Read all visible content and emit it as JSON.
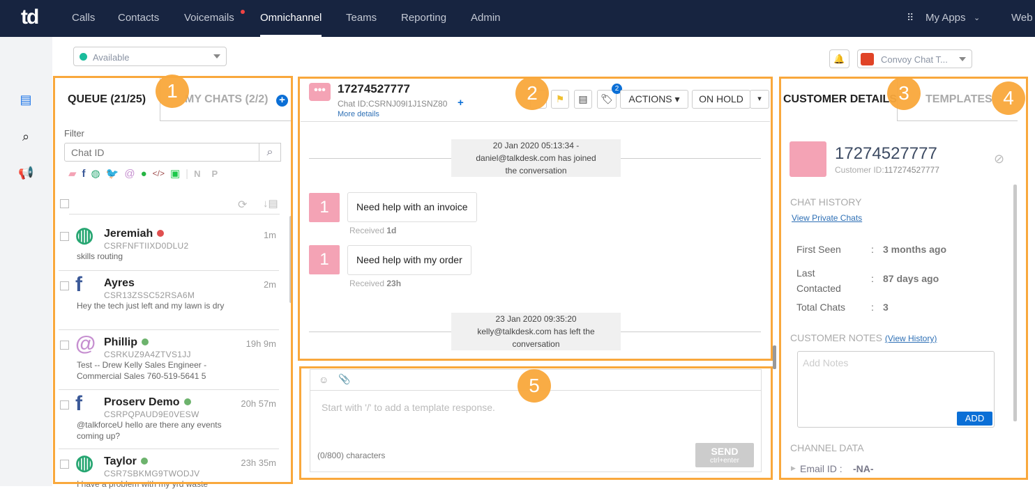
{
  "nav": {
    "logo": "td",
    "items": [
      "Calls",
      "Contacts",
      "Voicemails",
      "Omnichannel",
      "Teams",
      "Reporting",
      "Admin"
    ],
    "active": "Omnichannel",
    "my_apps": "My Apps",
    "web": "Web"
  },
  "status": {
    "value": "Available",
    "color": "#1abc9c"
  },
  "app_select": {
    "value": "Convoy Chat T..."
  },
  "queue": {
    "tab_queue": "QUEUE (21/25)",
    "tab_mychats": "MY CHATS (2/2)",
    "filter_label": "Filter",
    "search_placeholder": "Chat ID",
    "channel_letters": [
      "N",
      "P"
    ],
    "items": [
      {
        "name": "Jeremiah",
        "id": "CSRFNFTIIXD0DLU2",
        "preview": "skills routing",
        "time": "1m",
        "channel": "web",
        "status": "#e05050"
      },
      {
        "name": "Ayres",
        "id": "CSR13ZSSC52RSA6M",
        "preview": "Hey the tech just left and my lawn is dry",
        "time": "2m",
        "channel": "facebook",
        "status": ""
      },
      {
        "name": "Phillip",
        "id": "CSRKUZ9A4ZTVS1JJ",
        "preview": "Test -- Drew Kelly Sales Engineer - Commercial Sales 760-519-5641 5",
        "time": "19h 9m",
        "channel": "email",
        "status": "#6db36d"
      },
      {
        "name": "Proserv Demo",
        "id": "CSRPQPAUD9E0VESW",
        "preview": "@talkforceU hello are there any events coming up?",
        "time": "20h 57m",
        "channel": "facebook",
        "status": "#6db36d"
      },
      {
        "name": "Taylor",
        "id": "CSR7SBKMG9TWODJV",
        "preview": "I have a problem with my yrd waste",
        "time": "23h 35m",
        "channel": "web",
        "status": "#6db36d"
      }
    ]
  },
  "chat": {
    "title": "17274527777",
    "chat_id": "Chat ID:CSRNJ09I1J1SNZ80",
    "more": "More details",
    "tag_count": "2",
    "actions": "ACTIONS",
    "on_hold": "ON HOLD",
    "sys1": [
      "20 Jan 2020 05:13:34 -",
      "daniel@talkdesk.com has joined",
      "the conversation"
    ],
    "messages": [
      {
        "avatar": "1",
        "text": "Need help with an invoice",
        "received_label": "Received",
        "received": "1d"
      },
      {
        "avatar": "1",
        "text": "Need help with my order",
        "received_label": "Received",
        "received": "23h"
      }
    ],
    "sys2": [
      "23 Jan 2020 09:35:20",
      "kelly@talkdesk.com has left the",
      "conversation"
    ]
  },
  "composer": {
    "placeholder": "Start with '/' to add a template response.",
    "counter": "(0/800) characters",
    "send": "SEND",
    "send_hint": "ctrl+enter"
  },
  "customer": {
    "tab_details": "CUSTOMER DETAILS",
    "tab_templates": "TEMPLATES",
    "name": "17274527777",
    "id_label": "Customer ID:",
    "id": "117274527777",
    "chat_history": "CHAT HISTORY",
    "view_private": "View Private Chats",
    "fields": [
      {
        "label": "First Seen",
        "value": "3 months ago"
      },
      {
        "label": "Last Contacted",
        "value": "87 days ago"
      },
      {
        "label": "Total Chats",
        "value": "3"
      }
    ],
    "notes_title": "CUSTOMER NOTES",
    "view_history": "(View History)",
    "notes_placeholder": "Add Notes",
    "add": "ADD",
    "channel_data": "CHANNEL DATA",
    "email_label": "Email ID :",
    "email_value": "-NA-"
  },
  "annotations": [
    "1",
    "2",
    "3",
    "4",
    "5"
  ],
  "colors": {
    "nav": "#172440",
    "highlight": "#f9a83c",
    "accent": "#0b6fd6"
  }
}
